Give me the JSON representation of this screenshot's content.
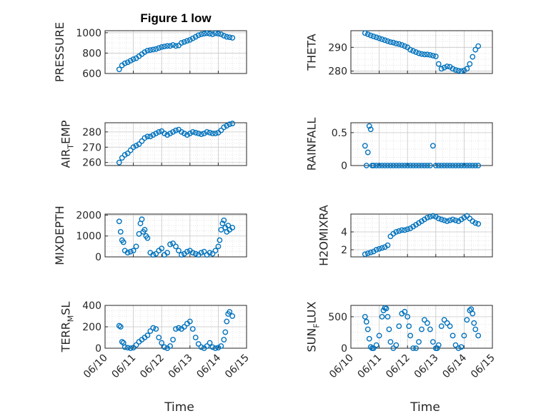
{
  "chart_data": [
    {
      "id": "pressure",
      "type": "scatter",
      "title": "Figure 1 low",
      "ylabel": "PRESSURE",
      "ylabel_sub": "",
      "ylabel_rest": "",
      "xlim": [
        0,
        5
      ],
      "ylim": [
        600,
        1020
      ],
      "yticks": [
        600,
        800,
        1000
      ],
      "x": [
        0.5,
        0.6,
        0.7,
        0.8,
        0.9,
        1.0,
        1.1,
        1.2,
        1.3,
        1.4,
        1.5,
        1.6,
        1.7,
        1.8,
        1.9,
        2.0,
        2.1,
        2.2,
        2.3,
        2.4,
        2.5,
        2.6,
        2.7,
        2.8,
        2.9,
        3.0,
        3.1,
        3.2,
        3.3,
        3.4,
        3.5,
        3.6,
        3.7,
        3.8,
        3.9,
        4.0,
        4.1,
        4.2,
        4.3,
        4.4,
        4.5
      ],
      "y": [
        640,
        680,
        700,
        710,
        725,
        740,
        750,
        770,
        790,
        810,
        825,
        830,
        835,
        840,
        850,
        860,
        865,
        870,
        870,
        880,
        870,
        875,
        900,
        910,
        920,
        930,
        945,
        960,
        975,
        985,
        990,
        995,
        990,
        985,
        995,
        990,
        985,
        970,
        960,
        955,
        950
      ]
    },
    {
      "id": "theta",
      "type": "scatter",
      "title": "",
      "ylabel": "THETA",
      "ylabel_sub": "",
      "ylabel_rest": "",
      "xlim": [
        0,
        5
      ],
      "ylim": [
        279,
        297
      ],
      "yticks": [
        280,
        290
      ],
      "x": [
        0.5,
        0.6,
        0.7,
        0.8,
        0.9,
        1.0,
        1.1,
        1.2,
        1.3,
        1.4,
        1.5,
        1.6,
        1.7,
        1.8,
        1.9,
        2.0,
        2.1,
        2.2,
        2.3,
        2.4,
        2.5,
        2.6,
        2.7,
        2.8,
        2.9,
        3.0,
        3.1,
        3.2,
        3.3,
        3.4,
        3.5,
        3.6,
        3.7,
        3.8,
        3.9,
        4.0,
        4.1,
        4.2,
        4.3,
        4.4,
        4.5
      ],
      "y": [
        296,
        295.5,
        295,
        294.6,
        294.2,
        293.8,
        293.4,
        293,
        292.6,
        292.2,
        292,
        291.6,
        291.4,
        291,
        290.5,
        290,
        289,
        288.5,
        288,
        287.5,
        287.2,
        287,
        287,
        286.8,
        286.5,
        286.2,
        283,
        281,
        281.5,
        282,
        281.8,
        281,
        280.5,
        280.2,
        280,
        280.3,
        281,
        283,
        286,
        289,
        290.5
      ]
    },
    {
      "id": "air_temp",
      "type": "scatter",
      "title": "",
      "ylabel": "AIR",
      "ylabel_sub": "T",
      "ylabel_rest": "EMP",
      "xlim": [
        0,
        5
      ],
      "ylim": [
        258,
        286
      ],
      "yticks": [
        260,
        270,
        280
      ],
      "x": [
        0.5,
        0.6,
        0.7,
        0.8,
        0.9,
        1.0,
        1.1,
        1.2,
        1.3,
        1.4,
        1.5,
        1.6,
        1.7,
        1.8,
        1.9,
        2.0,
        2.1,
        2.2,
        2.3,
        2.4,
        2.5,
        2.6,
        2.7,
        2.8,
        2.9,
        3.0,
        3.1,
        3.2,
        3.3,
        3.4,
        3.5,
        3.6,
        3.7,
        3.8,
        3.9,
        4.0,
        4.1,
        4.2,
        4.3,
        4.4,
        4.5
      ],
      "y": [
        260,
        263,
        265,
        266,
        268,
        270,
        271,
        272,
        274,
        276,
        277,
        277,
        278,
        279,
        280,
        280.5,
        279,
        278,
        279,
        280,
        281,
        281.5,
        280,
        279,
        278,
        279,
        280,
        279.5,
        279,
        278.5,
        279,
        280,
        279.5,
        279,
        279,
        279.5,
        281,
        283,
        284,
        285,
        285.5
      ]
    },
    {
      "id": "rainfall",
      "type": "scatter",
      "title": "",
      "ylabel": "RAINFALL",
      "ylabel_sub": "",
      "ylabel_rest": "",
      "xlim": [
        0,
        5
      ],
      "ylim": [
        0,
        0.65
      ],
      "yticks": [
        0,
        0.5
      ],
      "x": [
        0.5,
        0.55,
        0.6,
        0.65,
        0.7,
        0.75,
        0.8,
        0.9,
        1.0,
        1.1,
        1.2,
        1.3,
        1.4,
        1.5,
        1.6,
        1.7,
        1.8,
        1.9,
        2.0,
        2.1,
        2.2,
        2.3,
        2.4,
        2.5,
        2.6,
        2.7,
        2.8,
        2.9,
        3.0,
        3.1,
        3.2,
        3.3,
        3.4,
        3.5,
        3.6,
        3.7,
        3.8,
        3.9,
        4.0,
        4.1,
        4.2,
        4.3,
        4.4,
        4.5
      ],
      "y": [
        0.3,
        0,
        0.2,
        0.6,
        0.55,
        0,
        0,
        0,
        0,
        0,
        0,
        0,
        0,
        0,
        0,
        0,
        0,
        0,
        0,
        0,
        0,
        0,
        0,
        0,
        0,
        0,
        0,
        0.3,
        0,
        0,
        0,
        0,
        0,
        0,
        0,
        0,
        0,
        0,
        0,
        0,
        0,
        0,
        0,
        0
      ]
    },
    {
      "id": "mixdepth",
      "type": "scatter",
      "title": "",
      "ylabel": "MIXDEPTH",
      "ylabel_sub": "",
      "ylabel_rest": "",
      "xlim": [
        0,
        5
      ],
      "ylim": [
        0,
        2050
      ],
      "yticks": [
        0,
        1000,
        2000
      ],
      "x": [
        0.5,
        0.55,
        0.6,
        0.65,
        0.7,
        0.8,
        0.9,
        1.0,
        1.1,
        1.2,
        1.25,
        1.3,
        1.35,
        1.4,
        1.45,
        1.5,
        1.6,
        1.7,
        1.8,
        1.9,
        2.0,
        2.1,
        2.2,
        2.3,
        2.4,
        2.5,
        2.6,
        2.7,
        2.8,
        2.9,
        3.0,
        3.1,
        3.2,
        3.3,
        3.4,
        3.5,
        3.6,
        3.7,
        3.8,
        3.9,
        4.0,
        4.05,
        4.1,
        4.15,
        4.2,
        4.25,
        4.3,
        4.35,
        4.4,
        4.5
      ],
      "y": [
        1700,
        1200,
        800,
        700,
        300,
        200,
        250,
        300,
        500,
        1100,
        1600,
        1800,
        1200,
        1300,
        1000,
        900,
        200,
        100,
        150,
        300,
        400,
        100,
        200,
        600,
        650,
        500,
        300,
        100,
        150,
        250,
        300,
        200,
        150,
        100,
        200,
        250,
        100,
        200,
        150,
        300,
        500,
        800,
        1300,
        1600,
        1750,
        1400,
        1200,
        1500,
        1300,
        1400
      ]
    },
    {
      "id": "h2omixra",
      "type": "scatter",
      "title": "",
      "ylabel": "H2OMIXRA",
      "ylabel_sub": "",
      "ylabel_rest": "",
      "xlim": [
        0,
        5
      ],
      "ylim": [
        1.2,
        6.0
      ],
      "yticks": [
        2,
        4
      ],
      "x": [
        0.5,
        0.6,
        0.7,
        0.8,
        0.9,
        1.0,
        1.1,
        1.2,
        1.3,
        1.4,
        1.5,
        1.6,
        1.7,
        1.8,
        1.9,
        2.0,
        2.1,
        2.2,
        2.3,
        2.4,
        2.5,
        2.6,
        2.7,
        2.8,
        2.9,
        3.0,
        3.1,
        3.2,
        3.3,
        3.4,
        3.5,
        3.6,
        3.7,
        3.8,
        3.9,
        4.0,
        4.1,
        4.2,
        4.3,
        4.4,
        4.5
      ],
      "y": [
        1.5,
        1.6,
        1.7,
        1.8,
        2.0,
        2.1,
        2.2,
        2.3,
        2.5,
        3.5,
        3.8,
        4.0,
        4.1,
        4.2,
        4.2,
        4.3,
        4.4,
        4.6,
        4.8,
        5.0,
        5.2,
        5.4,
        5.6,
        5.7,
        5.8,
        5.7,
        5.5,
        5.4,
        5.3,
        5.2,
        5.3,
        5.4,
        5.3,
        5.2,
        5.4,
        5.6,
        5.8,
        5.5,
        5.2,
        5.0,
        4.9
      ]
    },
    {
      "id": "terr_msl",
      "type": "scatter",
      "title": "",
      "ylabel": "TERR",
      "ylabel_sub": "M",
      "ylabel_rest": "SL",
      "xlim": [
        0,
        5
      ],
      "ylim": [
        0,
        400
      ],
      "yticks": [
        0,
        200,
        400
      ],
      "x": [
        0.5,
        0.55,
        0.6,
        0.65,
        0.7,
        0.8,
        0.9,
        1.0,
        1.1,
        1.2,
        1.3,
        1.4,
        1.5,
        1.6,
        1.7,
        1.8,
        1.9,
        2.0,
        2.1,
        2.2,
        2.3,
        2.4,
        2.5,
        2.6,
        2.7,
        2.8,
        2.9,
        3.0,
        3.1,
        3.2,
        3.3,
        3.4,
        3.5,
        3.6,
        3.7,
        3.8,
        3.9,
        4.0,
        4.1,
        4.2,
        4.25,
        4.3,
        4.35,
        4.4,
        4.5
      ],
      "y": [
        210,
        200,
        60,
        50,
        10,
        5,
        0,
        5,
        30,
        60,
        80,
        100,
        120,
        160,
        190,
        180,
        100,
        50,
        10,
        0,
        20,
        80,
        180,
        190,
        180,
        200,
        230,
        250,
        180,
        100,
        40,
        10,
        0,
        20,
        50,
        10,
        0,
        5,
        20,
        80,
        150,
        250,
        320,
        340,
        300
      ]
    },
    {
      "id": "sun_flux",
      "type": "scatter",
      "title": "",
      "ylabel": "SUN",
      "ylabel_sub": "F",
      "ylabel_rest": "LUX",
      "xlim": [
        0,
        5
      ],
      "ylim": [
        0,
        680
      ],
      "yticks": [
        0,
        500
      ],
      "x": [
        0.5,
        0.55,
        0.6,
        0.65,
        0.7,
        0.75,
        0.8,
        0.9,
        1.0,
        1.1,
        1.15,
        1.2,
        1.25,
        1.3,
        1.35,
        1.4,
        1.5,
        1.6,
        1.7,
        1.8,
        1.9,
        2.0,
        2.05,
        2.1,
        2.2,
        2.3,
        2.4,
        2.5,
        2.6,
        2.7,
        2.8,
        2.9,
        3.0,
        3.05,
        3.1,
        3.2,
        3.3,
        3.4,
        3.5,
        3.6,
        3.7,
        3.8,
        3.9,
        4.0,
        4.1,
        4.2,
        4.25,
        4.3,
        4.35,
        4.4,
        4.5
      ],
      "y": [
        500,
        420,
        300,
        150,
        20,
        0,
        0,
        50,
        200,
        500,
        600,
        640,
        630,
        500,
        300,
        100,
        0,
        50,
        350,
        550,
        580,
        500,
        350,
        200,
        0,
        0,
        100,
        300,
        450,
        400,
        300,
        100,
        0,
        0,
        50,
        350,
        450,
        400,
        350,
        200,
        50,
        0,
        20,
        200,
        450,
        600,
        620,
        550,
        400,
        300,
        200
      ]
    }
  ],
  "x_axis": {
    "ticks": [
      0,
      1,
      2,
      3,
      4,
      5
    ],
    "tick_labels": [
      "06/10",
      "06/11",
      "06/12",
      "06/13",
      "06/14",
      "06/15"
    ],
    "label": "Time"
  },
  "colors": {
    "marker": "#0072bd",
    "grid": "#dcdcdc",
    "axis": "#262626"
  }
}
